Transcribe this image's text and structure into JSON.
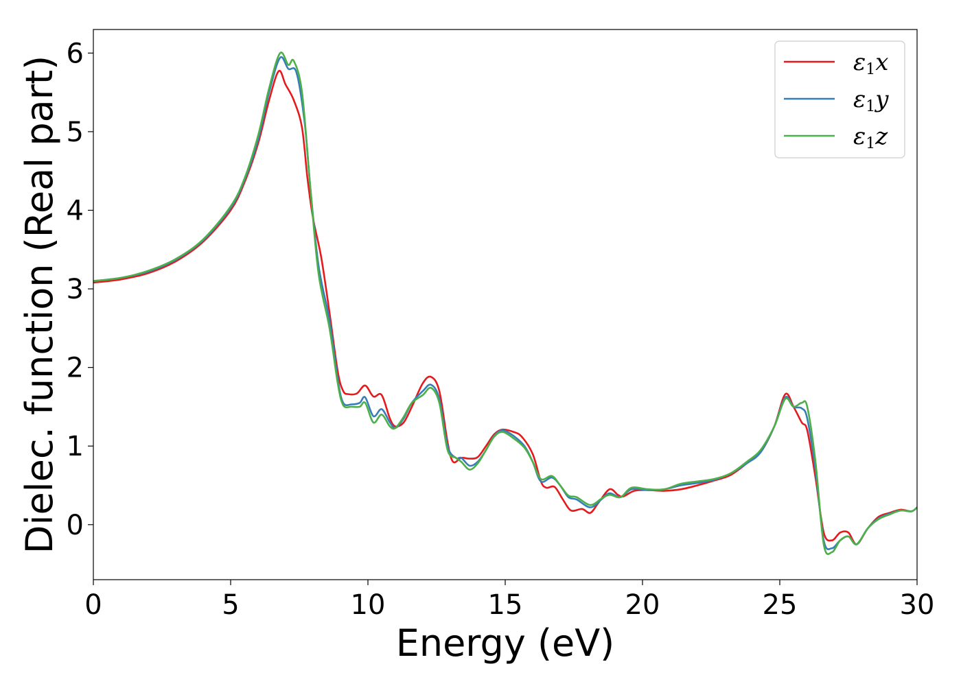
{
  "chart_data": {
    "type": "line",
    "title": "",
    "xlabel": "Energy (eV)",
    "ylabel": "Dielec. function (Real part)",
    "xlim": [
      0,
      30
    ],
    "ylim": [
      -0.7,
      6.3
    ],
    "xticks": [
      0,
      5,
      10,
      15,
      20,
      25,
      30
    ],
    "yticks": [
      0,
      1,
      2,
      3,
      4,
      5,
      6
    ],
    "grid": false,
    "legend_position": "top-right",
    "series": [
      {
        "name": "ε1x",
        "symbol": "ε",
        "sub": "1",
        "var": "x",
        "color": "#e41a1c",
        "points": [
          [
            0,
            3.08
          ],
          [
            1,
            3.12
          ],
          [
            2,
            3.2
          ],
          [
            3,
            3.35
          ],
          [
            4,
            3.6
          ],
          [
            5,
            4.0
          ],
          [
            5.5,
            4.35
          ],
          [
            6,
            4.85
          ],
          [
            6.4,
            5.4
          ],
          [
            6.75,
            5.77
          ],
          [
            7.0,
            5.6
          ],
          [
            7.3,
            5.4
          ],
          [
            7.6,
            5.05
          ],
          [
            7.8,
            4.4
          ],
          [
            8.0,
            3.9
          ],
          [
            8.3,
            3.4
          ],
          [
            8.6,
            2.7
          ],
          [
            8.9,
            1.95
          ],
          [
            9.1,
            1.7
          ],
          [
            9.3,
            1.66
          ],
          [
            9.6,
            1.67
          ],
          [
            9.9,
            1.77
          ],
          [
            10.2,
            1.63
          ],
          [
            10.5,
            1.65
          ],
          [
            10.8,
            1.35
          ],
          [
            11.0,
            1.25
          ],
          [
            11.3,
            1.3
          ],
          [
            11.6,
            1.5
          ],
          [
            12.0,
            1.8
          ],
          [
            12.3,
            1.88
          ],
          [
            12.6,
            1.7
          ],
          [
            12.9,
            1.05
          ],
          [
            13.1,
            0.8
          ],
          [
            13.4,
            0.85
          ],
          [
            13.7,
            0.84
          ],
          [
            14.0,
            0.86
          ],
          [
            14.3,
            1.0
          ],
          [
            14.6,
            1.15
          ],
          [
            14.9,
            1.21
          ],
          [
            15.3,
            1.18
          ],
          [
            15.6,
            1.12
          ],
          [
            16.0,
            0.9
          ],
          [
            16.3,
            0.55
          ],
          [
            16.5,
            0.47
          ],
          [
            16.8,
            0.48
          ],
          [
            17.1,
            0.32
          ],
          [
            17.4,
            0.18
          ],
          [
            17.8,
            0.2
          ],
          [
            18.1,
            0.15
          ],
          [
            18.4,
            0.28
          ],
          [
            18.8,
            0.45
          ],
          [
            19.1,
            0.38
          ],
          [
            19.3,
            0.36
          ],
          [
            19.7,
            0.43
          ],
          [
            20.2,
            0.44
          ],
          [
            20.8,
            0.43
          ],
          [
            21.4,
            0.45
          ],
          [
            22.0,
            0.5
          ],
          [
            22.6,
            0.56
          ],
          [
            23.2,
            0.63
          ],
          [
            23.8,
            0.78
          ],
          [
            24.3,
            0.92
          ],
          [
            24.8,
            1.25
          ],
          [
            25.2,
            1.66
          ],
          [
            25.5,
            1.5
          ],
          [
            25.8,
            1.3
          ],
          [
            26.0,
            1.2
          ],
          [
            26.3,
            0.6
          ],
          [
            26.6,
            -0.1
          ],
          [
            26.9,
            -0.2
          ],
          [
            27.2,
            -0.1
          ],
          [
            27.5,
            -0.1
          ],
          [
            27.8,
            -0.25
          ],
          [
            28.2,
            -0.05
          ],
          [
            28.6,
            0.1
          ],
          [
            29.0,
            0.15
          ],
          [
            29.4,
            0.19
          ],
          [
            29.8,
            0.17
          ],
          [
            30.0,
            0.22
          ]
        ]
      },
      {
        "name": "ε1y",
        "symbol": "ε",
        "sub": "1",
        "var": "y",
        "color": "#377eb8",
        "points": [
          [
            0,
            3.1
          ],
          [
            1,
            3.14
          ],
          [
            2,
            3.22
          ],
          [
            3,
            3.37
          ],
          [
            4,
            3.62
          ],
          [
            5,
            4.03
          ],
          [
            5.5,
            4.38
          ],
          [
            6,
            4.9
          ],
          [
            6.4,
            5.5
          ],
          [
            6.8,
            5.94
          ],
          [
            7.1,
            5.8
          ],
          [
            7.4,
            5.75
          ],
          [
            7.7,
            5.1
          ],
          [
            7.9,
            4.3
          ],
          [
            8.2,
            3.3
          ],
          [
            8.6,
            2.6
          ],
          [
            8.9,
            1.85
          ],
          [
            9.1,
            1.55
          ],
          [
            9.4,
            1.53
          ],
          [
            9.7,
            1.55
          ],
          [
            9.9,
            1.62
          ],
          [
            10.2,
            1.38
          ],
          [
            10.5,
            1.47
          ],
          [
            10.8,
            1.3
          ],
          [
            11.0,
            1.23
          ],
          [
            11.3,
            1.35
          ],
          [
            11.6,
            1.55
          ],
          [
            12.0,
            1.7
          ],
          [
            12.3,
            1.78
          ],
          [
            12.6,
            1.6
          ],
          [
            12.9,
            1.0
          ],
          [
            13.2,
            0.85
          ],
          [
            13.4,
            0.85
          ],
          [
            13.7,
            0.75
          ],
          [
            14.0,
            0.8
          ],
          [
            14.3,
            0.95
          ],
          [
            14.6,
            1.13
          ],
          [
            14.9,
            1.2
          ],
          [
            15.3,
            1.13
          ],
          [
            15.7,
            1.0
          ],
          [
            16.0,
            0.8
          ],
          [
            16.3,
            0.55
          ],
          [
            16.7,
            0.6
          ],
          [
            17.0,
            0.5
          ],
          [
            17.3,
            0.35
          ],
          [
            17.6,
            0.32
          ],
          [
            18.1,
            0.22
          ],
          [
            18.5,
            0.32
          ],
          [
            18.8,
            0.4
          ],
          [
            19.2,
            0.35
          ],
          [
            19.6,
            0.45
          ],
          [
            20.2,
            0.44
          ],
          [
            20.8,
            0.45
          ],
          [
            21.4,
            0.5
          ],
          [
            22.0,
            0.53
          ],
          [
            22.6,
            0.57
          ],
          [
            23.2,
            0.65
          ],
          [
            23.8,
            0.78
          ],
          [
            24.3,
            0.92
          ],
          [
            24.8,
            1.25
          ],
          [
            25.2,
            1.62
          ],
          [
            25.5,
            1.5
          ],
          [
            25.8,
            1.48
          ],
          [
            26.0,
            1.35
          ],
          [
            26.3,
            0.7
          ],
          [
            26.6,
            -0.2
          ],
          [
            26.9,
            -0.3
          ],
          [
            27.2,
            -0.2
          ],
          [
            27.5,
            -0.15
          ],
          [
            27.8,
            -0.25
          ],
          [
            28.2,
            -0.05
          ],
          [
            28.6,
            0.08
          ],
          [
            29.0,
            0.14
          ],
          [
            29.4,
            0.18
          ],
          [
            29.8,
            0.17
          ],
          [
            30.0,
            0.22
          ]
        ]
      },
      {
        "name": "ε1z",
        "symbol": "ε",
        "sub": "1",
        "var": "z",
        "color": "#4daf4a",
        "points": [
          [
            0,
            3.1
          ],
          [
            1,
            3.14
          ],
          [
            2,
            3.23
          ],
          [
            3,
            3.38
          ],
          [
            4,
            3.63
          ],
          [
            5,
            4.05
          ],
          [
            5.5,
            4.4
          ],
          [
            6,
            4.95
          ],
          [
            6.4,
            5.55
          ],
          [
            6.8,
            6.0
          ],
          [
            7.1,
            5.85
          ],
          [
            7.3,
            5.9
          ],
          [
            7.6,
            5.5
          ],
          [
            7.9,
            4.3
          ],
          [
            8.2,
            3.2
          ],
          [
            8.6,
            2.5
          ],
          [
            8.9,
            1.8
          ],
          [
            9.1,
            1.52
          ],
          [
            9.4,
            1.5
          ],
          [
            9.7,
            1.5
          ],
          [
            9.9,
            1.55
          ],
          [
            10.2,
            1.3
          ],
          [
            10.5,
            1.4
          ],
          [
            10.8,
            1.25
          ],
          [
            11.0,
            1.23
          ],
          [
            11.3,
            1.37
          ],
          [
            11.6,
            1.55
          ],
          [
            12.0,
            1.65
          ],
          [
            12.3,
            1.74
          ],
          [
            12.6,
            1.55
          ],
          [
            12.9,
            0.95
          ],
          [
            13.2,
            0.85
          ],
          [
            13.4,
            0.8
          ],
          [
            13.7,
            0.7
          ],
          [
            14.0,
            0.78
          ],
          [
            14.3,
            0.95
          ],
          [
            14.6,
            1.12
          ],
          [
            14.9,
            1.18
          ],
          [
            15.3,
            1.1
          ],
          [
            15.7,
            0.98
          ],
          [
            16.0,
            0.8
          ],
          [
            16.3,
            0.58
          ],
          [
            16.7,
            0.62
          ],
          [
            17.0,
            0.5
          ],
          [
            17.3,
            0.37
          ],
          [
            17.6,
            0.35
          ],
          [
            18.1,
            0.25
          ],
          [
            18.5,
            0.33
          ],
          [
            18.8,
            0.38
          ],
          [
            19.2,
            0.35
          ],
          [
            19.6,
            0.47
          ],
          [
            20.2,
            0.45
          ],
          [
            20.8,
            0.45
          ],
          [
            21.4,
            0.52
          ],
          [
            22.0,
            0.55
          ],
          [
            22.6,
            0.58
          ],
          [
            23.2,
            0.65
          ],
          [
            23.8,
            0.8
          ],
          [
            24.3,
            0.95
          ],
          [
            24.8,
            1.25
          ],
          [
            25.2,
            1.6
          ],
          [
            25.5,
            1.5
          ],
          [
            25.8,
            1.55
          ],
          [
            26.0,
            1.5
          ],
          [
            26.3,
            0.8
          ],
          [
            26.6,
            -0.25
          ],
          [
            26.9,
            -0.35
          ],
          [
            27.2,
            -0.2
          ],
          [
            27.5,
            -0.15
          ],
          [
            27.8,
            -0.25
          ],
          [
            28.2,
            -0.05
          ],
          [
            28.6,
            0.07
          ],
          [
            29.0,
            0.13
          ],
          [
            29.4,
            0.18
          ],
          [
            29.8,
            0.17
          ],
          [
            30.0,
            0.22
          ]
        ]
      }
    ]
  }
}
